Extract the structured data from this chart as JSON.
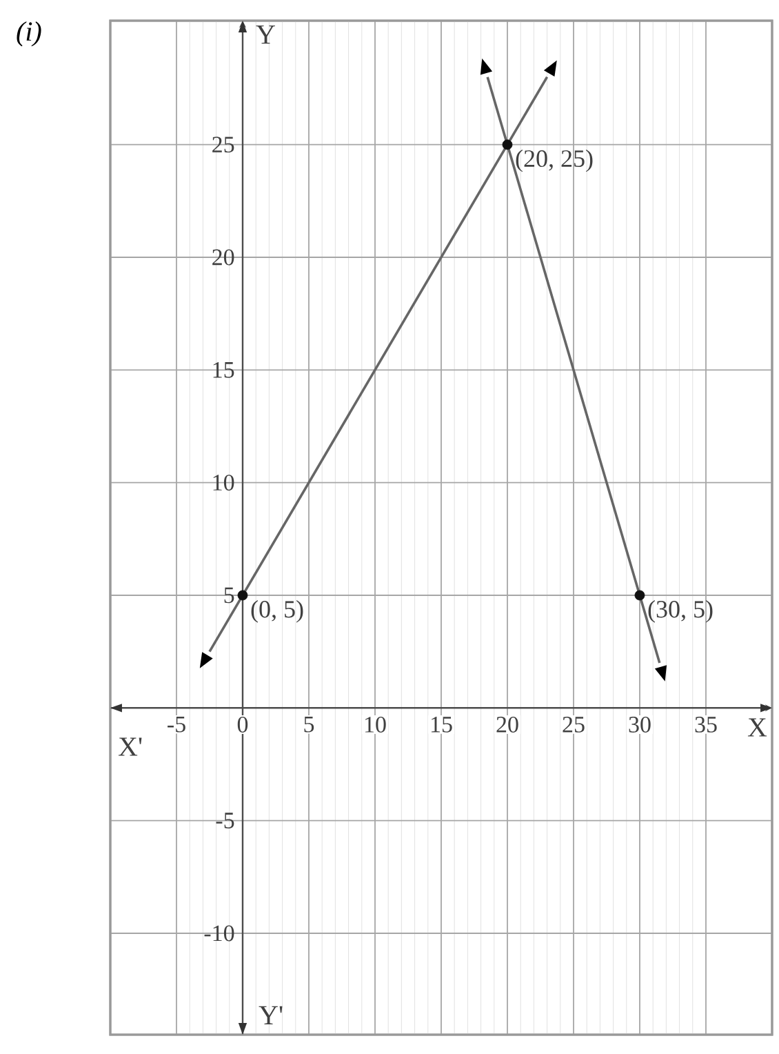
{
  "chart_data": {
    "type": "line",
    "title": "(i)",
    "xlabel": "X",
    "ylabel": "Y",
    "xlim": [
      -10,
      40
    ],
    "ylim": [
      -14.5,
      30.5
    ],
    "xticks": [
      -5,
      0,
      5,
      10,
      15,
      20,
      25,
      30,
      35
    ],
    "yticks": [
      -10,
      -5,
      5,
      10,
      15,
      20,
      25
    ],
    "grid": true,
    "series": [
      {
        "x": [
          -2.5,
          23
        ],
        "values": [
          2.5,
          28
        ],
        "color": "#666666"
      },
      {
        "x": [
          18.5,
          31.5
        ],
        "values": [
          28,
          2
        ],
        "color": "#666666"
      },
      {
        "type": "scatter",
        "x": [
          0,
          20,
          30
        ],
        "values": [
          5,
          25,
          5
        ],
        "color": "#111111",
        "marker": "circle"
      }
    ],
    "annotations": [
      {
        "text": "(0, 5)",
        "x": 0,
        "y": 5
      },
      {
        "text": "(20, 25)",
        "x": 20,
        "y": 25
      },
      {
        "text": "(30, 5)",
        "x": 30,
        "y": 5
      },
      "X'",
      "Y'"
    ]
  }
}
